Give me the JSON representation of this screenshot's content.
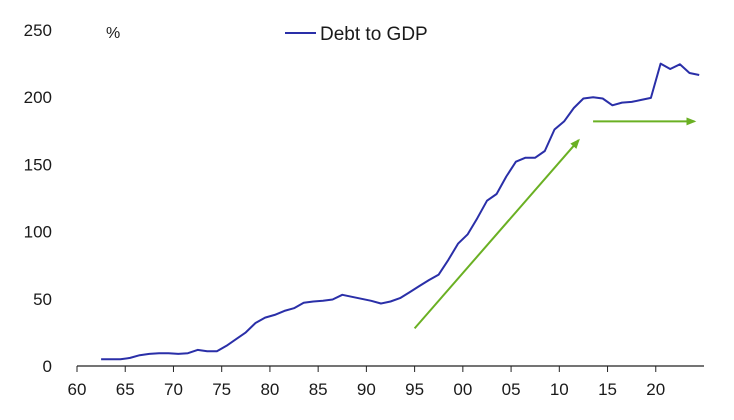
{
  "chart_data": {
    "type": "line",
    "unit_label": "%",
    "legend": {
      "label": "Debt to GDP",
      "placement": "top-center"
    },
    "grid": false,
    "xlim": [
      1960,
      2025
    ],
    "ylim": [
      0,
      250
    ],
    "x_ticks": [
      1960,
      1965,
      1970,
      1975,
      1980,
      1985,
      1990,
      1995,
      2000,
      2005,
      2010,
      2015,
      2020
    ],
    "x_tick_labels": [
      "60",
      "65",
      "70",
      "75",
      "80",
      "85",
      "90",
      "95",
      "00",
      "05",
      "10",
      "15",
      "20"
    ],
    "y_ticks": [
      0,
      50,
      100,
      150,
      200,
      250
    ],
    "y_tick_labels": [
      "0",
      "50",
      "100",
      "150",
      "200",
      "250"
    ],
    "series": [
      {
        "name": "Debt to GDP",
        "color": "#2a2fa8",
        "x": [
          1962.5,
          1964.5,
          1965.5,
          1966.5,
          1967.5,
          1968.5,
          1969.5,
          1970.5,
          1971.5,
          1972.5,
          1973.5,
          1974.5,
          1975.5,
          1976.5,
          1977.5,
          1978.5,
          1979.5,
          1980.5,
          1981.5,
          1982.5,
          1983.5,
          1984.5,
          1985.5,
          1986.5,
          1987.5,
          1988.5,
          1989.5,
          1990.5,
          1991.5,
          1992.5,
          1993.5,
          1994.5,
          1995.5,
          1996.5,
          1997.5,
          1998.5,
          1999.5,
          2000.5,
          2001.5,
          2002.5,
          2003.5,
          2004.5,
          2005.5,
          2006.5,
          2007.5,
          2008.5,
          2009.5,
          2010.5,
          2011.5,
          2012.5,
          2013.5,
          2014.5,
          2015.5,
          2016.5,
          2017.5,
          2018.5,
          2019.5,
          2020.5,
          2021.5,
          2022.5,
          2023.5,
          2024.5
        ],
        "y": [
          5,
          5,
          6,
          8,
          9,
          9.5,
          9.5,
          9,
          9.5,
          12,
          11,
          11,
          15,
          20,
          25,
          32,
          36,
          38,
          41,
          43,
          47,
          48,
          48.5,
          49.5,
          53,
          51.5,
          50,
          48.5,
          46.5,
          48,
          50.5,
          55,
          59.5,
          64,
          68,
          79,
          91,
          98,
          110,
          123,
          128,
          141,
          152,
          155,
          155,
          160,
          176,
          182,
          192,
          199,
          200,
          199,
          194,
          196,
          196.5,
          198,
          199.5,
          225,
          221,
          224.5,
          218,
          216.5
        ]
      }
    ],
    "annotations": [
      {
        "type": "arrow",
        "color": "#6ab023",
        "from": [
          1995,
          28
        ],
        "to": [
          2012,
          168
        ]
      },
      {
        "type": "arrow",
        "color": "#6ab023",
        "from": [
          2013.5,
          182
        ],
        "to": [
          2024,
          182
        ]
      }
    ]
  }
}
